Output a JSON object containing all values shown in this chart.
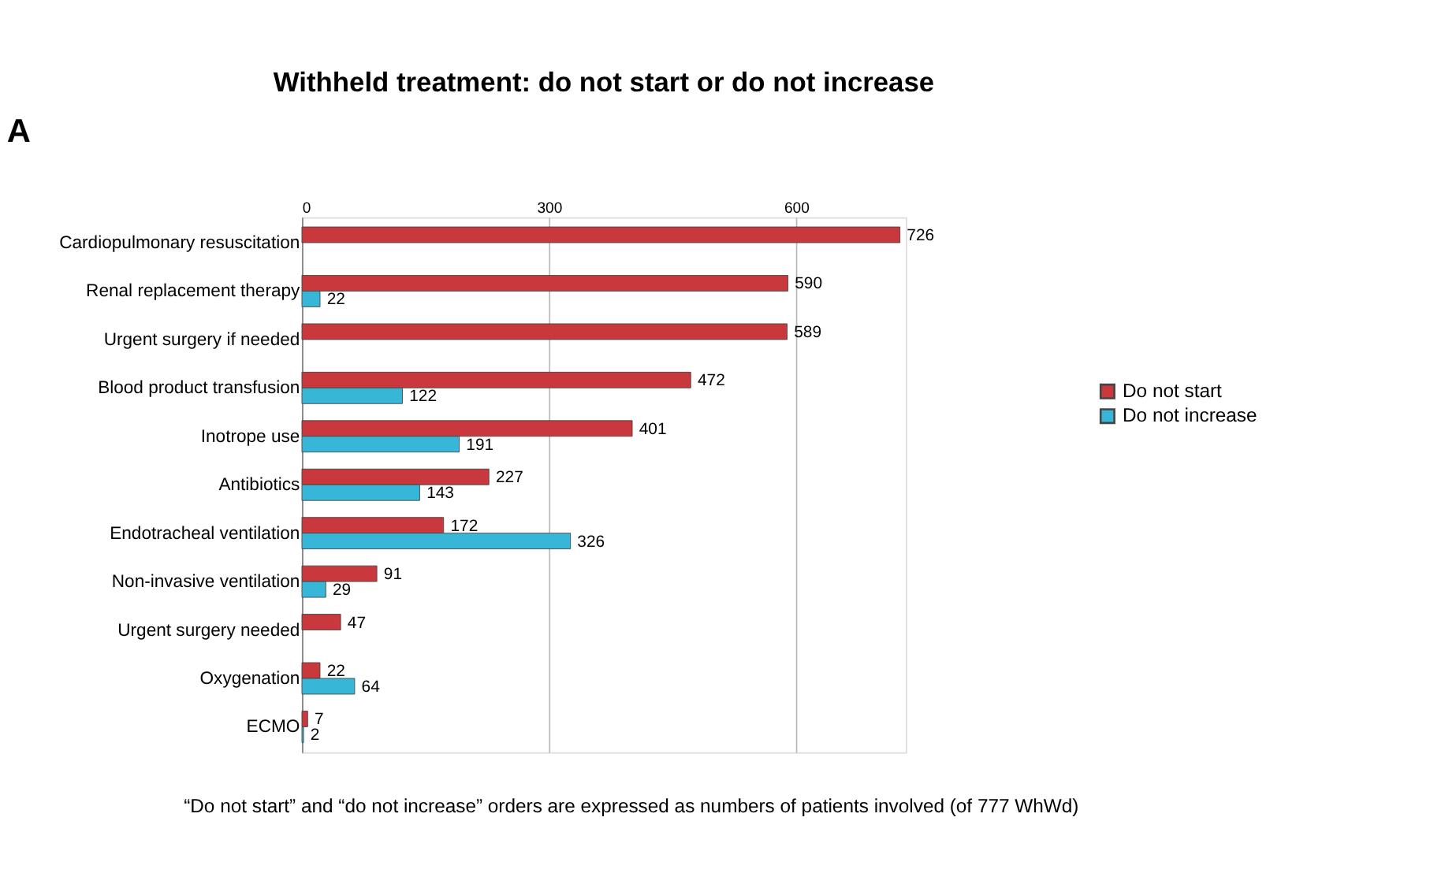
{
  "chart_data": {
    "type": "bar",
    "orientation": "horizontal",
    "title": "Withheld treatment: do not start or do not increase",
    "categories": [
      "Cardiopulmonary resuscitation",
      "Renal replacement therapy",
      "Urgent surgery if needed",
      "Blood product transfusion",
      "Inotrope use",
      "Antibiotics",
      "Endotracheal ventilation",
      "Non-invasive ventilation",
      "Urgent surgery needed",
      "Oxygenation",
      "ECMO"
    ],
    "series": [
      {
        "name": "Do not start",
        "color": "#c8383c",
        "values": [
          726,
          590,
          589,
          472,
          401,
          227,
          172,
          91,
          47,
          22,
          7
        ]
      },
      {
        "name": "Do not increase",
        "color": "#38b6d8",
        "values": [
          null,
          22,
          null,
          122,
          191,
          143,
          326,
          29,
          null,
          64,
          2
        ]
      }
    ],
    "xlim": [
      0,
      733
    ],
    "xticks": [
      0,
      300,
      600
    ],
    "grid": "x",
    "legend": "right",
    "data_labels": true,
    "annotations": [
      "A",
      "“Do not start” and “do not increase” orders are expressed as numbers of patients involved (of 777 WhWd)"
    ]
  }
}
